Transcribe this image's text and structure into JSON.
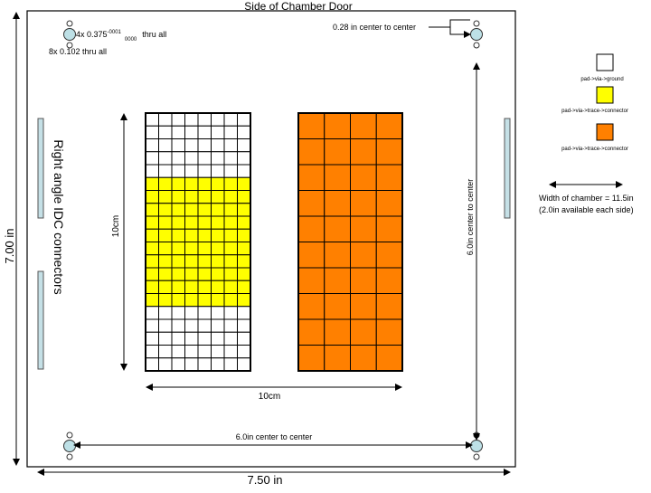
{
  "title": "Side of Chamber Door",
  "holes": {
    "large_label": "4x 0.375",
    "large_sup": "-0001",
    "large_sub": "0000",
    "large_suffix": "thru all",
    "small_label": "8x 0.102 thru all",
    "spacing_top": "0.28 in center to center"
  },
  "dimensions": {
    "height": "7.00 in",
    "width": "7.50 in",
    "hole_vertical": "6.0in center to center",
    "hole_horizontal": "6.0in center to center",
    "grid_height": "10cm",
    "grid_width": "10cm"
  },
  "connectors_label": "Right angle IDC connectors",
  "legend": [
    {
      "label": "pad->via->ground",
      "color": "#ffffff"
    },
    {
      "label": "pad->via->trace->connector",
      "color": "#ffff00"
    },
    {
      "label": "pad->via->trace->connector",
      "color": "#ff8000"
    }
  ],
  "chamber_note": {
    "line1": "Width of chamber = 11.5in",
    "line2": "(2.0in available each side)"
  },
  "grids": {
    "left": {
      "cols": 8,
      "rows": 20,
      "yellow_rows_start": 5,
      "yellow_rows_end": 15,
      "base_color": "#ffffff",
      "fill_color": "#ffff00"
    },
    "right": {
      "cols": 4,
      "rows": 10,
      "fill_color": "#ff8000"
    }
  },
  "colors": {
    "hole": "#bde0e6",
    "connector": "#c5e0e6"
  }
}
